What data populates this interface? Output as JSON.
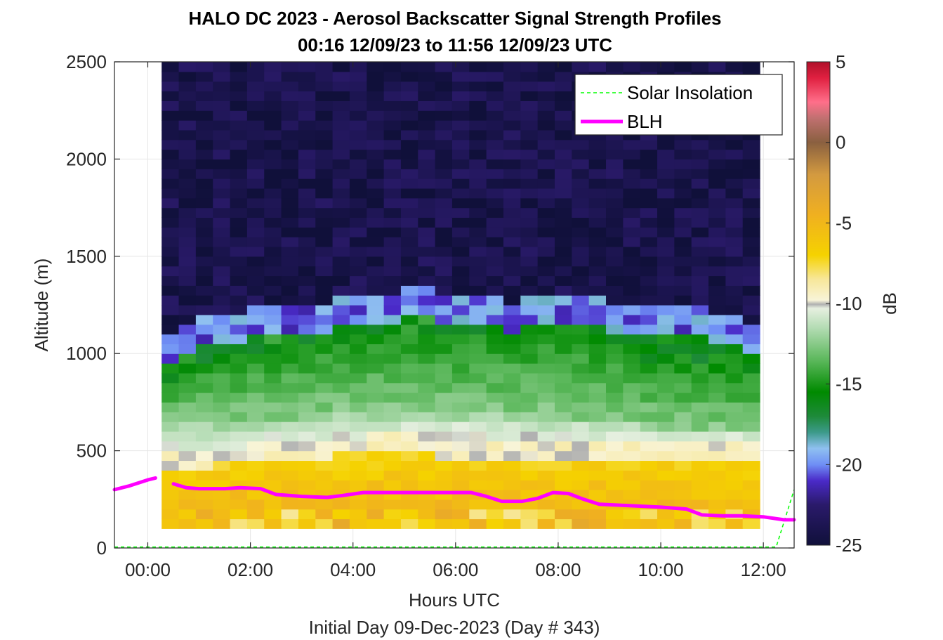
{
  "chart_data": {
    "type": "heatmap",
    "title": "HALO DC 2023 - Aerosol Backscatter Signal Strength Profiles",
    "subtitle": "00:16 12/09/23 to 11:56 12/09/23  UTC",
    "xlabel": "Hours UTC",
    "ylabel": "Altitude (m)",
    "footer": "Initial Day 09-Dec-2023 (Day # 343)",
    "x_unit": "hours",
    "xlim": [
      -0.65,
      12.6
    ],
    "ylim": [
      0,
      2500
    ],
    "x_ticks": [
      {
        "value": 0,
        "label": "00:00"
      },
      {
        "value": 2,
        "label": "02:00"
      },
      {
        "value": 4,
        "label": "04:00"
      },
      {
        "value": 6,
        "label": "06:00"
      },
      {
        "value": 8,
        "label": "08:00"
      },
      {
        "value": 10,
        "label": "10:00"
      },
      {
        "value": 12,
        "label": "12:00"
      }
    ],
    "y_ticks": [
      {
        "value": 0,
        "label": "0"
      },
      {
        "value": 500,
        "label": "500"
      },
      {
        "value": 1000,
        "label": "1000"
      },
      {
        "value": 1500,
        "label": "1500"
      },
      {
        "value": 2000,
        "label": "2000"
      },
      {
        "value": 2500,
        "label": "2500"
      }
    ],
    "grid": true,
    "heatmap": {
      "x_start": 0.27,
      "x_end": 11.93,
      "y_start": 100,
      "y_end": 2500,
      "columns": 35,
      "rows": 48,
      "time_profile": {
        "x": [
          0.27,
          1.0,
          2.0,
          3.0,
          4.0,
          5.0,
          6.0,
          7.0,
          8.0,
          9.0,
          10.0,
          11.0,
          11.93
        ],
        "purple_green_transition_m": [
          950,
          1020,
          1080,
          1100,
          1150,
          1180,
          1170,
          1120,
          1150,
          1120,
          1100,
          1080,
          1000
        ],
        "green_top_m": [
          850,
          950,
          1000,
          1030,
          1080,
          1120,
          1100,
          1080,
          1100,
          1050,
          950,
          900,
          900
        ],
        "light_green_top_m": [
          650,
          650,
          650,
          680,
          700,
          700,
          700,
          680,
          680,
          650,
          620,
          620,
          620
        ],
        "cream_top_m": [
          500,
          500,
          520,
          540,
          560,
          580,
          560,
          560,
          560,
          560,
          560,
          540,
          540
        ],
        "yellow_top_m": [
          400,
          420,
          440,
          460,
          480,
          480,
          470,
          460,
          460,
          460,
          460,
          440,
          440
        ]
      },
      "note_levels_db": {
        "aloft": -24,
        "transition": -20,
        "green": -15,
        "light_green": -12,
        "cream": -9.5,
        "yellow": -7,
        "near_surface": -6
      }
    },
    "series": [
      {
        "name": "Solar Insolation",
        "style": "dashed",
        "color": "#00ff00",
        "x": [
          -0.65,
          12.25,
          12.6
        ],
        "y": [
          5,
          5,
          300
        ]
      },
      {
        "name": "BLH",
        "style": "solid",
        "color": "#ff00ff",
        "segments": [
          {
            "x": [
              -0.65,
              -0.35,
              0,
              0.15
            ],
            "y": [
              300,
              320,
              350,
              360
            ]
          },
          {
            "x": [
              0.5,
              0.75,
              1,
              1.5,
              1.8,
              2.2,
              2.5,
              3,
              3.5,
              3.8,
              4.2,
              4.5,
              5,
              5.5,
              6,
              6.3,
              6.6,
              6.9,
              7.3,
              7.6,
              7.9,
              8.2,
              8.5,
              8.8,
              9.2,
              9.6,
              10,
              10.5,
              10.8,
              11.2,
              11.6,
              12,
              12.4,
              12.6
            ],
            "y": [
              330,
              310,
              305,
              305,
              310,
              305,
              275,
              265,
              260,
              270,
              285,
              285,
              285,
              285,
              285,
              285,
              265,
              240,
              240,
              255,
              285,
              280,
              250,
              225,
              220,
              215,
              210,
              200,
              170,
              165,
              165,
              160,
              145,
              145
            ]
          }
        ]
      }
    ],
    "colorbar": {
      "label": "dB",
      "range": [
        -25,
        5
      ],
      "ticks": [
        {
          "value": 5,
          "label": "5"
        },
        {
          "value": 0,
          "label": "0"
        },
        {
          "value": -5,
          "label": "-5"
        },
        {
          "value": -10,
          "label": "-10"
        },
        {
          "value": -15,
          "label": "-15"
        },
        {
          "value": -20,
          "label": "-20"
        },
        {
          "value": -25,
          "label": "-25"
        }
      ],
      "stops": [
        {
          "value": -25,
          "color": "#10103a"
        },
        {
          "value": -22.5,
          "color": "#2a1a6a"
        },
        {
          "value": -21,
          "color": "#4a2ac8"
        },
        {
          "value": -20,
          "color": "#6f8ff5"
        },
        {
          "value": -19,
          "color": "#8fc0f0"
        },
        {
          "value": -18,
          "color": "#3c9a8a"
        },
        {
          "value": -17,
          "color": "#1e8a3a"
        },
        {
          "value": -15.5,
          "color": "#008a00"
        },
        {
          "value": -13.5,
          "color": "#5cb85c"
        },
        {
          "value": -11.5,
          "color": "#b4dcb4"
        },
        {
          "value": -10.3,
          "color": "#e6efe0"
        },
        {
          "value": -10.05,
          "color": "#b0b0b0"
        },
        {
          "value": -9.8,
          "color": "#f8f4d8"
        },
        {
          "value": -8.5,
          "color": "#f7e79a"
        },
        {
          "value": -7,
          "color": "#f5d200"
        },
        {
          "value": -4.5,
          "color": "#f0b020"
        },
        {
          "value": -2,
          "color": "#d39a40"
        },
        {
          "value": 0,
          "color": "#8a6040"
        },
        {
          "value": 1.5,
          "color": "#c07070"
        },
        {
          "value": 2.5,
          "color": "#ff6f8a"
        },
        {
          "value": 4,
          "color": "#e02040"
        },
        {
          "value": 5,
          "color": "#b0102a"
        }
      ]
    },
    "legend": {
      "position": "top-right",
      "entries": [
        {
          "name": "Solar Insolation",
          "color": "#00ff00",
          "style": "dashed"
        },
        {
          "name": "BLH",
          "color": "#ff00ff",
          "style": "solid"
        }
      ]
    }
  }
}
